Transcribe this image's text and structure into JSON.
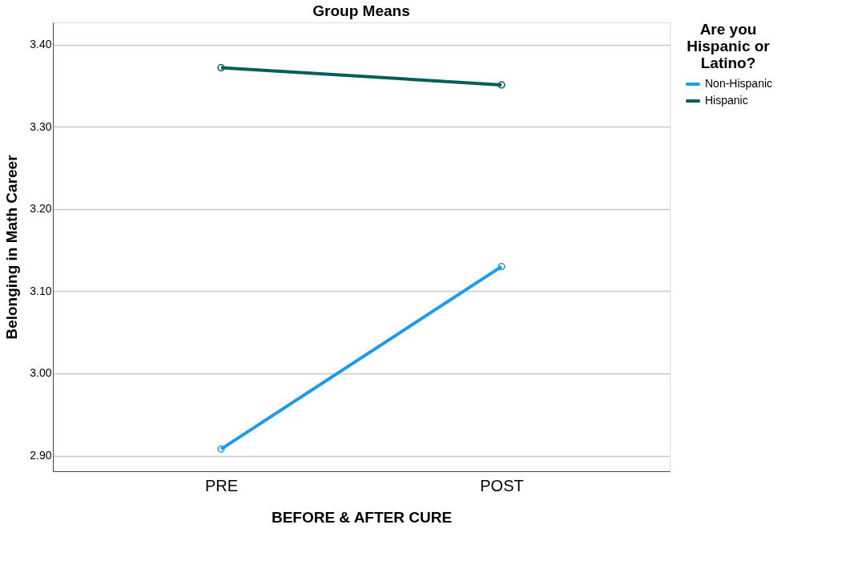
{
  "chart_data": {
    "type": "line",
    "title": "Group Means",
    "xlabel": "BEFORE & AFTER CURE",
    "ylabel": "Belonging in Math Career",
    "legend_title": "Are you Hispanic or Latino?",
    "categories": [
      "PRE",
      "POST"
    ],
    "series": [
      {
        "name": "Non-Hispanic",
        "color": "#1f9ae8",
        "values": [
          2.908,
          3.13
        ]
      },
      {
        "name": "Hispanic",
        "color": "#005e5a",
        "values": [
          3.372,
          3.351
        ]
      }
    ],
    "ylim": [
      2.881,
      3.427
    ],
    "yticks": [
      {
        "value": 2.9,
        "label": "2.90"
      },
      {
        "value": 3.0,
        "label": "3.00"
      },
      {
        "value": 3.1,
        "label": "3.10"
      },
      {
        "value": 3.2,
        "label": "3.20"
      },
      {
        "value": 3.3,
        "label": "3.30"
      },
      {
        "value": 3.4,
        "label": "3.40"
      }
    ],
    "grid": "y",
    "legend": "top right",
    "marker": "circle",
    "line_style": "solid"
  }
}
